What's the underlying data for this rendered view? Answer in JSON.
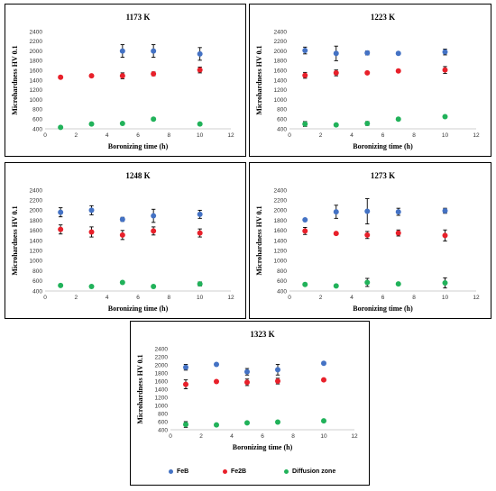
{
  "chart_data": [
    {
      "type": "scatter",
      "title": "1173 K",
      "xlabel": "Boronizing time (h)",
      "ylabel": "Microhardness HV 0.1",
      "xlim": [
        0,
        12
      ],
      "ylim": [
        400,
        2400
      ],
      "xticks": [
        "0",
        "2",
        "4",
        "6",
        "8",
        "10",
        "12"
      ],
      "yticks": [
        "400",
        "600",
        "800",
        "1000",
        "1200",
        "1400",
        "1600",
        "1800",
        "2000",
        "2200",
        "2400"
      ],
      "series": [
        {
          "name": "FeB",
          "x": [
            5,
            7,
            10
          ],
          "y": [
            2000,
            2000,
            1940
          ],
          "err": [
            130,
            130,
            130
          ]
        },
        {
          "name": "Fe2B",
          "x": [
            1,
            3,
            5,
            7,
            10
          ],
          "y": [
            1460,
            1490,
            1490,
            1530,
            1610
          ],
          "err": [
            0,
            0,
            60,
            40,
            60
          ]
        },
        {
          "name": "Diffusion zone",
          "x": [
            1,
            3,
            5,
            7,
            10
          ],
          "y": [
            430,
            500,
            510,
            600,
            500
          ],
          "err": [
            0,
            0,
            0,
            0,
            0
          ]
        }
      ]
    },
    {
      "type": "scatter",
      "title": "1223 K",
      "xlabel": "Boronizing time (h)",
      "ylabel": "Microhardness HV 0.1",
      "xlim": [
        0,
        12
      ],
      "ylim": [
        400,
        2400
      ],
      "xticks": [
        "0",
        "2",
        "4",
        "6",
        "8",
        "10",
        "12"
      ],
      "yticks": [
        "400",
        "600",
        "800",
        "1000",
        "1200",
        "1400",
        "1600",
        "1800",
        "2000",
        "2200",
        "2400"
      ],
      "series": [
        {
          "name": "FeB",
          "x": [
            1,
            3,
            5,
            7,
            10
          ],
          "y": [
            2010,
            1950,
            1960,
            1950,
            1980
          ],
          "err": [
            70,
            150,
            40,
            0,
            60
          ]
        },
        {
          "name": "Fe2B",
          "x": [
            1,
            3,
            5,
            7,
            10
          ],
          "y": [
            1500,
            1550,
            1550,
            1590,
            1610
          ],
          "err": [
            60,
            60,
            0,
            0,
            70
          ]
        },
        {
          "name": "Diffusion zone",
          "x": [
            1,
            3,
            5,
            7,
            10
          ],
          "y": [
            500,
            480,
            510,
            600,
            650
          ],
          "err": [
            50,
            0,
            40,
            0,
            0
          ]
        }
      ]
    },
    {
      "type": "scatter",
      "title": "1248 K",
      "xlabel": "Boronizing time (h)",
      "ylabel": "Microhardness HV 0.1",
      "xlim": [
        0,
        12
      ],
      "ylim": [
        400,
        2400
      ],
      "xticks": [
        "0",
        "2",
        "4",
        "6",
        "8",
        "10",
        "12"
      ],
      "yticks": [
        "400",
        "600",
        "800",
        "1000",
        "1200",
        "1400",
        "1600",
        "1800",
        "2000",
        "2200",
        "2400"
      ],
      "series": [
        {
          "name": "FeB",
          "x": [
            1,
            3,
            5,
            7,
            10
          ],
          "y": [
            1960,
            2000,
            1820,
            1890,
            1920
          ],
          "err": [
            90,
            90,
            40,
            130,
            80
          ]
        },
        {
          "name": "Fe2B",
          "x": [
            1,
            3,
            5,
            7,
            10
          ],
          "y": [
            1620,
            1570,
            1510,
            1590,
            1550
          ],
          "err": [
            90,
            100,
            90,
            80,
            80
          ]
        },
        {
          "name": "Diffusion zone",
          "x": [
            1,
            3,
            5,
            7,
            10
          ],
          "y": [
            510,
            490,
            570,
            490,
            540
          ],
          "err": [
            0,
            0,
            0,
            0,
            40
          ]
        }
      ]
    },
    {
      "type": "scatter",
      "title": "1273 K",
      "xlabel": "Boronizing time (h)",
      "ylabel": "Microhardness HV 0.1",
      "xlim": [
        0,
        12
      ],
      "ylim": [
        400,
        2400
      ],
      "xticks": [
        "0",
        "2",
        "4",
        "6",
        "8",
        "10",
        "12"
      ],
      "yticks": [
        "400",
        "600",
        "800",
        "1000",
        "1200",
        "1400",
        "1600",
        "1800",
        "2000",
        "2200",
        "2400"
      ],
      "series": [
        {
          "name": "FeB",
          "x": [
            1,
            3,
            5,
            7,
            10
          ],
          "y": [
            1810,
            1970,
            1980,
            1970,
            1990
          ],
          "err": [
            0,
            130,
            250,
            70,
            50
          ]
        },
        {
          "name": "Fe2B",
          "x": [
            1,
            3,
            5,
            7,
            10
          ],
          "y": [
            1590,
            1540,
            1510,
            1550,
            1500
          ],
          "err": [
            70,
            0,
            70,
            60,
            110
          ]
        },
        {
          "name": "Diffusion zone",
          "x": [
            1,
            3,
            5,
            7,
            10
          ],
          "y": [
            530,
            500,
            570,
            540,
            560
          ],
          "err": [
            0,
            0,
            80,
            0,
            100
          ]
        }
      ]
    },
    {
      "type": "scatter",
      "title": "1323 K",
      "xlabel": "Boronizing time (h)",
      "ylabel": "Microhardness HV 0.1",
      "xlim": [
        0,
        12
      ],
      "ylim": [
        400,
        2400
      ],
      "xticks": [
        "0",
        "2",
        "4",
        "6",
        "8",
        "10",
        "12"
      ],
      "yticks": [
        "400",
        "600",
        "800",
        "1000",
        "1200",
        "1400",
        "1600",
        "1800",
        "2000",
        "2200",
        "2400"
      ],
      "series": [
        {
          "name": "FeB",
          "x": [
            1,
            3,
            5,
            7,
            10
          ],
          "y": [
            1940,
            2010,
            1830,
            1880,
            2040
          ],
          "err": [
            70,
            0,
            80,
            130,
            0
          ]
        },
        {
          "name": "Fe2B",
          "x": [
            1,
            3,
            5,
            7,
            10
          ],
          "y": [
            1520,
            1590,
            1570,
            1600,
            1630
          ],
          "err": [
            110,
            0,
            80,
            70,
            0
          ]
        },
        {
          "name": "Diffusion zone",
          "x": [
            1,
            3,
            5,
            7,
            10
          ],
          "y": [
            530,
            520,
            570,
            590,
            620
          ],
          "err": [
            70,
            0,
            0,
            0,
            0
          ]
        }
      ]
    }
  ],
  "legend": [
    {
      "label": "FeB",
      "color": "#4472C4"
    },
    {
      "label": "Fe2B",
      "color": "#E8202A"
    },
    {
      "label": "Diffusion zone",
      "color": "#21B25A"
    }
  ],
  "colors": {
    "FeB": "#4472C4",
    "Fe2B": "#E8202A",
    "Diffusion zone": "#21B25A"
  }
}
